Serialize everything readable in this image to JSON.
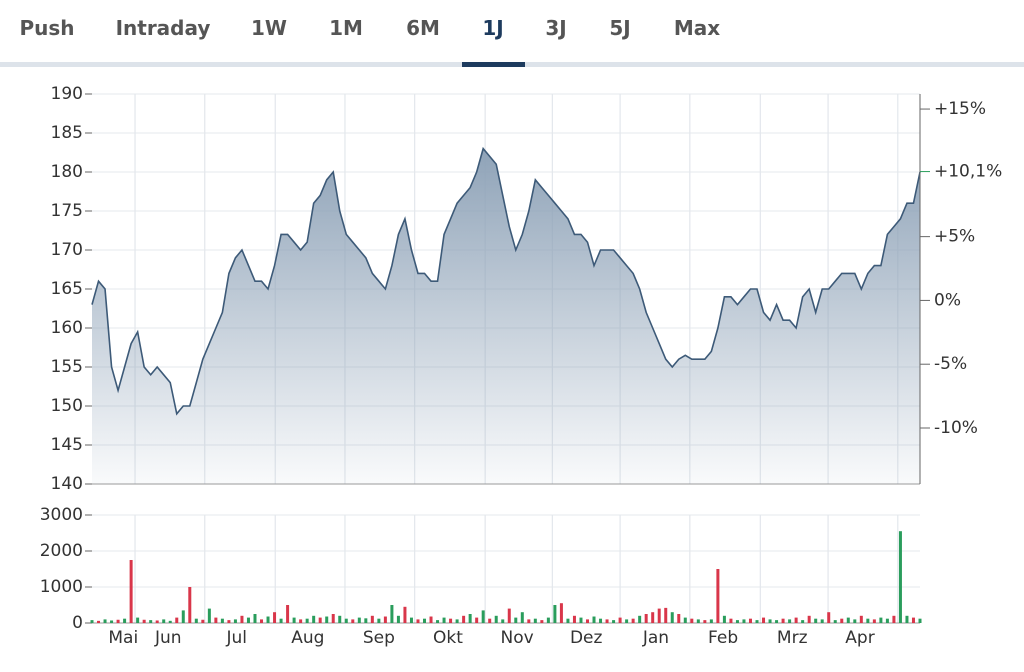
{
  "tabs": [
    "Push",
    "Intraday",
    "1W",
    "1M",
    "6M",
    "1J",
    "3J",
    "5J",
    "Max"
  ],
  "active_tab": 5,
  "chart_data": [
    {
      "type": "area",
      "color": "#3d5a78",
      "fill": "#8fa3b8",
      "grid": true,
      "values": [
        163,
        166,
        165,
        155,
        152,
        155,
        158,
        159.5,
        155,
        154,
        155,
        154,
        153,
        149,
        150,
        150,
        153,
        156,
        158,
        160,
        162,
        167,
        169,
        170,
        168,
        166,
        166,
        165,
        168,
        172,
        172,
        171,
        170,
        171,
        176,
        177,
        179,
        180,
        175,
        172,
        171,
        170,
        169,
        167,
        166,
        165,
        168,
        172,
        174,
        170,
        167,
        167,
        166,
        166,
        172,
        174,
        176,
        177,
        178,
        180,
        183,
        182,
        181,
        177,
        173,
        170,
        172,
        175,
        179,
        178,
        177,
        176,
        175,
        174,
        172,
        172,
        171,
        168,
        170,
        170,
        170,
        169,
        168,
        167,
        165,
        162,
        160,
        158,
        156,
        155,
        156,
        156.5,
        156,
        156,
        156,
        157,
        160,
        164,
        164,
        163,
        164,
        165,
        165,
        162,
        161,
        163,
        161,
        161,
        160,
        164,
        165,
        162,
        165,
        165,
        166,
        167,
        167,
        167,
        165,
        167,
        168,
        168,
        172,
        173,
        174,
        176,
        176,
        180
      ],
      "xlim": [
        0,
        127
      ],
      "xgrid": [
        6.6,
        17.3,
        28.1,
        38.8,
        49.5,
        60.3,
        70.6,
        81,
        91.7,
        102.5,
        112.9,
        123.6
      ],
      "ylim": [
        140,
        190
      ],
      "yticks": [
        140,
        145,
        150,
        155,
        160,
        165,
        170,
        175,
        180,
        185,
        190
      ],
      "y2lim": [
        -14.39,
        16.18
      ],
      "y2ticks": [
        {
          "value": 15,
          "label": "+15%"
        },
        {
          "value": 5,
          "label": "+5%"
        },
        {
          "value": 0,
          "label": "0%"
        },
        {
          "value": -5,
          "label": "-5%"
        },
        {
          "value": -10,
          "label": "-10%"
        }
      ],
      "y2_marker": {
        "value": 10.1,
        "label": "+10,1%",
        "color": "#2a9d5c"
      }
    },
    {
      "type": "bar",
      "grid": true,
      "values": [
        80,
        60,
        100,
        70,
        90,
        120,
        1750,
        150,
        90,
        80,
        70,
        100,
        60,
        150,
        350,
        1000,
        120,
        90,
        400,
        150,
        120,
        80,
        100,
        200,
        150,
        250,
        100,
        180,
        300,
        120,
        500,
        150,
        100,
        120,
        200,
        150,
        180,
        250,
        200,
        120,
        100,
        150,
        130,
        200,
        120,
        180,
        500,
        200,
        450,
        150,
        100,
        120,
        180,
        80,
        150,
        120,
        100,
        200,
        250,
        150,
        350,
        120,
        200,
        100,
        400,
        150,
        300,
        100,
        120,
        80,
        150,
        500,
        550,
        120,
        200,
        150,
        100,
        180,
        120,
        100,
        80,
        150,
        100,
        120,
        200,
        250,
        300,
        400,
        420,
        300,
        250,
        150,
        120,
        100,
        80,
        100,
        1500,
        200,
        120,
        80,
        100,
        120,
        80,
        150,
        100,
        80,
        120,
        100,
        150,
        80,
        200,
        120,
        100,
        300,
        80,
        120,
        150,
        100,
        200,
        120,
        100,
        150,
        120,
        200,
        2550,
        200,
        150,
        120
      ],
      "colors": [
        "#2a9d5c",
        "#d9364a",
        "#2a9d5c",
        "#2a9d5c",
        "#d9364a",
        "#2a9d5c",
        "#d9364a",
        "#2a9d5c",
        "#d9364a",
        "#2a9d5c",
        "#d9364a",
        "#2a9d5c",
        "#2a9d5c",
        "#d9364a",
        "#2a9d5c",
        "#d9364a",
        "#2a9d5c",
        "#d9364a",
        "#2a9d5c",
        "#d9364a",
        "#2a9d5c",
        "#d9364a",
        "#2a9d5c",
        "#d9364a",
        "#2a9d5c",
        "#2a9d5c",
        "#d9364a",
        "#2a9d5c",
        "#d9364a",
        "#2a9d5c",
        "#d9364a",
        "#2a9d5c",
        "#d9364a",
        "#2a9d5c",
        "#2a9d5c",
        "#d9364a",
        "#2a9d5c",
        "#d9364a",
        "#2a9d5c",
        "#2a9d5c",
        "#d9364a",
        "#2a9d5c",
        "#2a9d5c",
        "#d9364a",
        "#2a9d5c",
        "#d9364a",
        "#2a9d5c",
        "#2a9d5c",
        "#d9364a",
        "#2a9d5c",
        "#d9364a",
        "#2a9d5c",
        "#d9364a",
        "#2a9d5c",
        "#2a9d5c",
        "#d9364a",
        "#2a9d5c",
        "#d9364a",
        "#2a9d5c",
        "#d9364a",
        "#2a9d5c",
        "#d9364a",
        "#2a9d5c",
        "#2a9d5c",
        "#d9364a",
        "#2a9d5c",
        "#2a9d5c",
        "#d9364a",
        "#2a9d5c",
        "#d9364a",
        "#2a9d5c",
        "#2a9d5c",
        "#d9364a",
        "#2a9d5c",
        "#d9364a",
        "#2a9d5c",
        "#d9364a",
        "#2a9d5c",
        "#2a9d5c",
        "#d9364a",
        "#2a9d5c",
        "#d9364a",
        "#2a9d5c",
        "#d9364a",
        "#2a9d5c",
        "#d9364a",
        "#d9364a",
        "#d9364a",
        "#d9364a",
        "#2a9d5c",
        "#d9364a",
        "#2a9d5c",
        "#d9364a",
        "#2a9d5c",
        "#d9364a",
        "#2a9d5c",
        "#d9364a",
        "#2a9d5c",
        "#d9364a",
        "#2a9d5c",
        "#2a9d5c",
        "#d9364a",
        "#2a9d5c",
        "#d9364a",
        "#2a9d5c",
        "#2a9d5c",
        "#d9364a",
        "#2a9d5c",
        "#d9364a",
        "#2a9d5c",
        "#d9364a",
        "#2a9d5c",
        "#2a9d5c",
        "#d9364a",
        "#2a9d5c",
        "#d9364a",
        "#2a9d5c",
        "#2a9d5c",
        "#d9364a",
        "#2a9d5c",
        "#d9364a",
        "#2a9d5c",
        "#2a9d5c",
        "#d9364a",
        "#2a9d5c",
        "#2a9d5c",
        "#d9364a",
        "#2a9d5c"
      ],
      "xlim": [
        0,
        127
      ],
      "xgrid": [
        6.6,
        17.3,
        28.1,
        38.8,
        49.5,
        60.3,
        70.6,
        81,
        91.7,
        102.5,
        112.9,
        123.6
      ],
      "xticks": [
        {
          "value": 4.8,
          "label": "Mai"
        },
        {
          "value": 11.7,
          "label": "Jun"
        },
        {
          "value": 22.2,
          "label": "Jul"
        },
        {
          "value": 33.1,
          "label": "Aug"
        },
        {
          "value": 44,
          "label": "Sep"
        },
        {
          "value": 54.6,
          "label": "Okt"
        },
        {
          "value": 65.2,
          "label": "Nov"
        },
        {
          "value": 75.8,
          "label": "Dez"
        },
        {
          "value": 86.5,
          "label": "Jan"
        },
        {
          "value": 96.8,
          "label": "Feb"
        },
        {
          "value": 107.4,
          "label": "Mrz"
        },
        {
          "value": 117.8,
          "label": "Apr"
        }
      ],
      "ylim": [
        0,
        3000
      ],
      "yticks": [
        0,
        1000,
        2000,
        3000
      ]
    }
  ]
}
